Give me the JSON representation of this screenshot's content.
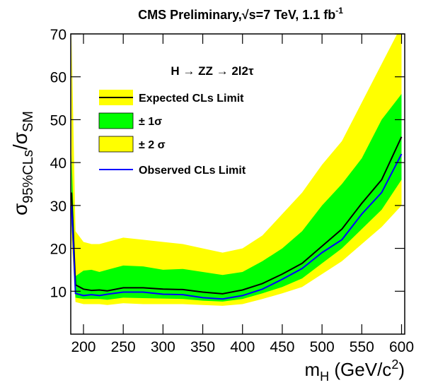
{
  "chart_data": {
    "type": "line",
    "title": "CMS Preliminary,√s=7 TeV, 1.1 fb",
    "title_superscript": "-1",
    "ylabel": [
      "σ",
      "95%CLs",
      "/σ",
      "SM"
    ],
    "xlabel": [
      "m",
      "H",
      " (GeV/c",
      "2",
      ")"
    ],
    "annotation": "H → ZZ → 2l2τ",
    "x": [
      185,
      190,
      200,
      210,
      220,
      230,
      250,
      275,
      300,
      325,
      350,
      375,
      400,
      425,
      450,
      475,
      500,
      525,
      550,
      575,
      600
    ],
    "xlim": [
      184,
      604
    ],
    "ylim": [
      0,
      70
    ],
    "xticks": [
      200,
      250,
      300,
      350,
      400,
      450,
      500,
      550,
      600
    ],
    "yticks": [
      10,
      20,
      30,
      40,
      50,
      60,
      70
    ],
    "series": [
      {
        "name": "Expected CLs Limit",
        "color": "#000000",
        "values": [
          33,
          11.5,
          10.5,
          10.2,
          10.3,
          10.1,
          10.8,
          10.8,
          10.5,
          10.4,
          9.8,
          9.4,
          10.3,
          11.8,
          14,
          16.5,
          20.5,
          24.5,
          30.5,
          36,
          46
        ]
      },
      {
        "name": "± 1σ",
        "color": "#00ff00",
        "lower": [
          26,
          8.5,
          8.2,
          8.2,
          8.2,
          8,
          8.5,
          8.4,
          8.3,
          8.2,
          7.8,
          7.6,
          8.2,
          9.5,
          11,
          13,
          16.5,
          20,
          24.5,
          29,
          36
        ],
        "upper": [
          42,
          13.5,
          14.8,
          15,
          14.5,
          15,
          16,
          15.8,
          15,
          15.2,
          14.5,
          13.8,
          14.5,
          17,
          20,
          24,
          30,
          35,
          41,
          50,
          56
        ]
      },
      {
        "name": "± 2 σ",
        "color": "#ffff00",
        "lower": [
          22,
          7.5,
          7,
          7,
          7,
          6.8,
          7.2,
          7,
          7,
          7,
          6.8,
          6.6,
          7,
          8.2,
          9.5,
          11,
          14,
          17,
          21,
          25,
          30
        ],
        "upper": [
          70,
          24,
          21.5,
          21,
          21,
          21.5,
          22.5,
          22,
          21.5,
          21,
          20,
          19,
          20,
          23,
          28,
          33,
          39.5,
          45,
          54,
          63,
          72
        ]
      },
      {
        "name": "Observed CLs Limit",
        "color": "#0000ff",
        "values": [
          30,
          9.5,
          9,
          9.2,
          9,
          9.3,
          9.8,
          9.8,
          9.3,
          9.2,
          8.5,
          8.2,
          9,
          10.5,
          12.8,
          15.3,
          19,
          22,
          28,
          33,
          42
        ]
      }
    ]
  }
}
